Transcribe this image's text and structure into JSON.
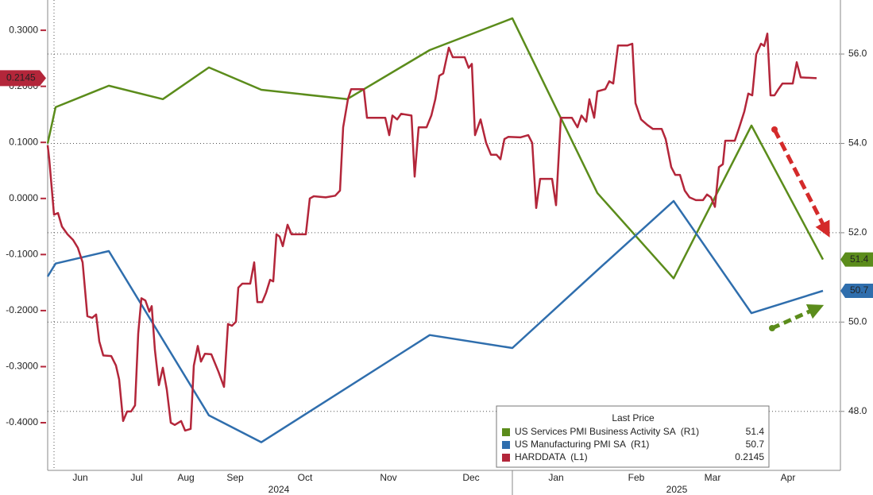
{
  "chart_data": {
    "type": "line",
    "xlim": [
      0,
      998
    ],
    "xticks": [
      {
        "value": 41,
        "label": "Jun"
      },
      {
        "value": 112,
        "label": "Jul"
      },
      {
        "value": 174,
        "label": "Aug"
      },
      {
        "value": 236,
        "label": "Sep"
      },
      {
        "value": 324,
        "label": "Oct"
      },
      {
        "value": 429,
        "label": "Nov"
      },
      {
        "value": 533,
        "label": "Dec"
      },
      {
        "value": 640,
        "label": "Jan"
      },
      {
        "value": 741,
        "label": "Feb"
      },
      {
        "value": 837,
        "label": "Mar"
      },
      {
        "value": 932,
        "label": "Apr"
      }
    ],
    "year_ticks": [
      {
        "value": 291,
        "label": "2024"
      },
      {
        "value": 792,
        "label": "2025"
      }
    ],
    "ylim": [
      -0.485,
      0.354
    ],
    "yticks": [
      {
        "value": 0.3,
        "label": "0.3000"
      },
      {
        "value": 0.2,
        "label": "0.2000"
      },
      {
        "value": 0.1,
        "label": "0.1000"
      },
      {
        "value": 0,
        "label": "0.0000"
      },
      {
        "value": -0.1,
        "label": "-0.1000"
      },
      {
        "value": -0.2,
        "label": "-0.2000"
      },
      {
        "value": -0.3,
        "label": "-0.3000"
      },
      {
        "value": -0.4,
        "label": "-0.4000"
      }
    ],
    "y2lim": [
      46.68,
      57.21
    ],
    "y2ticks": [
      {
        "value": 56,
        "label": "56.0"
      },
      {
        "value": 54,
        "label": "54.0"
      },
      {
        "value": 52,
        "label": "52.0"
      },
      {
        "value": 50,
        "label": "50.0"
      },
      {
        "value": 48,
        "label": "48.0"
      }
    ],
    "grid": true,
    "legend_title": "Last Price",
    "series": [
      {
        "name": "US Services PMI Business Activity SA  (R1)",
        "color": "#5b8c1b",
        "axis": "y2",
        "x": [
          0,
          10,
          77,
          145,
          203,
          269,
          377,
          481,
          585,
          692,
          788,
          886,
          976
        ],
        "values": [
          54.0,
          54.81,
          55.29,
          54.99,
          55.7,
          55.2,
          54.99,
          56.09,
          56.8,
          52.89,
          50.98,
          54.4,
          51.4
        ]
      },
      {
        "name": "US Manufacturing PMI SA  (R1)",
        "color": "#2f6ead",
        "axis": "y2",
        "x": [
          0,
          10,
          77,
          203,
          269,
          481,
          585,
          692,
          788,
          886,
          976
        ],
        "values": [
          51.02,
          51.31,
          51.59,
          47.91,
          47.31,
          49.71,
          49.42,
          51.16,
          52.71,
          50.2,
          50.7
        ]
      },
      {
        "name": "HARDDATA  (L1)",
        "color": "#b3263a",
        "axis": "y",
        "x": [
          0,
          2,
          8,
          13,
          18,
          25,
          32,
          38,
          44,
          50,
          56,
          61,
          65,
          70,
          80,
          86,
          90,
          95,
          100,
          105,
          110,
          114,
          118,
          123,
          128,
          131,
          135,
          140,
          145,
          150,
          155,
          160,
          168,
          173,
          180,
          184,
          189,
          193,
          198,
          206,
          215,
          222,
          227,
          232,
          237,
          240,
          245,
          255,
          260,
          264,
          270,
          275,
          280,
          284,
          288,
          292,
          296,
          302,
          307,
          325,
          330,
          335,
          350,
          362,
          368,
          372,
          378,
          382,
          398,
          402,
          425,
          430,
          434,
          440,
          445,
          458,
          462,
          467,
          477,
          483,
          488,
          493,
          498,
          505,
          510,
          515,
          525,
          530,
          534,
          538,
          545,
          552,
          558,
          565,
          570,
          575,
          580,
          595,
          605,
          610,
          615,
          620,
          635,
          640,
          646,
          660,
          667,
          672,
          678,
          682,
          688,
          692,
          702,
          707,
          712,
          718,
          730,
          736,
          740,
          747,
          755,
          762,
          773,
          778,
          785,
          790,
          796,
          802,
          808,
          816,
          825,
          830,
          835,
          840,
          845,
          850,
          853,
          865,
          870,
          877,
          882,
          887,
          892,
          898,
          902,
          906,
          910,
          915,
          920,
          925,
          938,
          943,
          948,
          968
        ],
        "values": [
          0.095,
          0.07,
          -0.029,
          -0.026,
          -0.05,
          -0.064,
          -0.074,
          -0.088,
          -0.114,
          -0.21,
          -0.213,
          -0.207,
          -0.255,
          -0.28,
          -0.281,
          -0.298,
          -0.323,
          -0.397,
          -0.38,
          -0.38,
          -0.369,
          -0.241,
          -0.178,
          -0.182,
          -0.202,
          -0.192,
          -0.27,
          -0.333,
          -0.302,
          -0.341,
          -0.4,
          -0.404,
          -0.397,
          -0.414,
          -0.411,
          -0.298,
          -0.263,
          -0.291,
          -0.277,
          -0.278,
          -0.309,
          -0.336,
          -0.224,
          -0.227,
          -0.22,
          -0.159,
          -0.152,
          -0.152,
          -0.114,
          -0.185,
          -0.185,
          -0.168,
          -0.145,
          -0.148,
          -0.064,
          -0.068,
          -0.085,
          -0.047,
          -0.064,
          -0.064,
          0.0,
          0.004,
          0.002,
          0.005,
          0.014,
          0.127,
          0.177,
          0.195,
          0.195,
          0.144,
          0.144,
          0.113,
          0.148,
          0.141,
          0.151,
          0.148,
          0.039,
          0.127,
          0.127,
          0.148,
          0.177,
          0.219,
          0.223,
          0.269,
          0.252,
          0.252,
          0.252,
          0.233,
          0.24,
          0.113,
          0.141,
          0.099,
          0.078,
          0.078,
          0.07,
          0.106,
          0.11,
          0.109,
          0.113,
          0.099,
          -0.017,
          0.035,
          0.035,
          -0.012,
          0.144,
          0.144,
          0.127,
          0.148,
          0.137,
          0.177,
          0.144,
          0.191,
          0.195,
          0.209,
          0.205,
          0.273,
          0.273,
          0.276,
          0.17,
          0.141,
          0.131,
          0.124,
          0.124,
          0.106,
          0.056,
          0.042,
          0.042,
          0.014,
          0.002,
          -0.003,
          -0.003,
          0.007,
          0.002,
          -0.015,
          0.056,
          0.061,
          0.103,
          0.103,
          0.124,
          0.155,
          0.187,
          0.184,
          0.257,
          0.276,
          0.272,
          0.294,
          0.184,
          0.184,
          0.195,
          0.205,
          0.205,
          0.243,
          0.216,
          0.2145
        ]
      }
    ]
  }
}
